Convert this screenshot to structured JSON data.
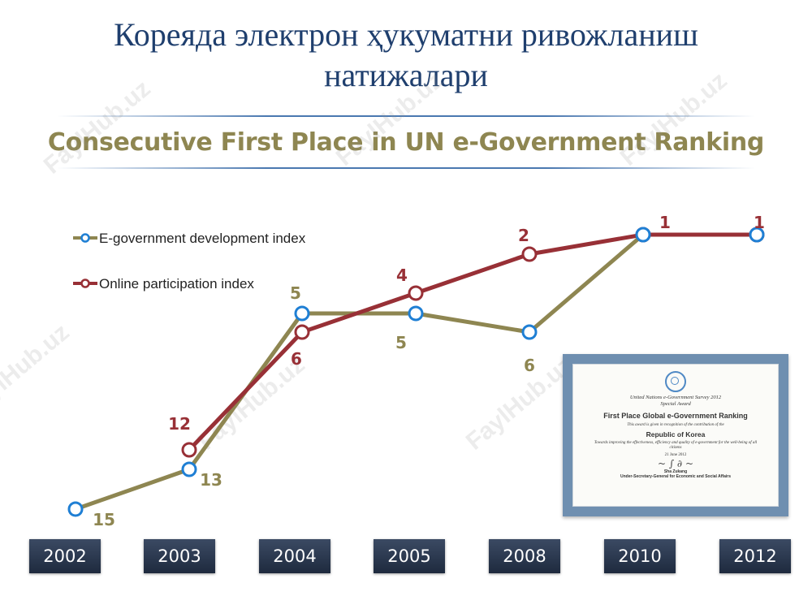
{
  "slide": {
    "title_line1": "Кореяда электрон ҳукуматни ривожланиш",
    "title_line2": "натижалари",
    "subtitle": "Consecutive First Place in UN e-Government Ranking",
    "watermark": "FaylHub.uz"
  },
  "certificate": {
    "survey": "United Nations e-Government Survey 2012",
    "award": "Special Award",
    "heading": "First Place Global e-Government Ranking",
    "recognition": "This award is given in recognition of the contribution of the",
    "country": "Republic of Korea",
    "reason": "Towards improving the effectiveness, efficiency and quality of e-government for the well-being of all citizens",
    "date": "21 June 2012",
    "signer_name": "Sha Zukang",
    "signer_title": "Under-Secretary-General for Economic and Social Affairs"
  },
  "colors": {
    "egov_line": "#8e8651",
    "egov_marker": "#1f7fd4",
    "online_line": "#983036",
    "online_marker": "#983036",
    "label_egov": "#8e8651",
    "label_online": "#983036"
  },
  "chart_data": {
    "type": "line",
    "categories": [
      "2002",
      "2003",
      "2004",
      "2005",
      "2008",
      "2010",
      "2012"
    ],
    "y_axis": "rank",
    "y_inverted": true,
    "grid": false,
    "legend_position": "top-left",
    "series": [
      {
        "name": "E-government development index",
        "values": [
          15,
          13,
          5,
          5,
          6,
          1,
          1
        ],
        "labels": [
          "15",
          "13",
          "5",
          "5",
          "6",
          "",
          ""
        ]
      },
      {
        "name": "Online participation index",
        "values": [
          null,
          12,
          6,
          4,
          2,
          1,
          1
        ],
        "labels": [
          "",
          "12",
          "6",
          "4",
          "2",
          "1",
          "1"
        ]
      }
    ]
  }
}
